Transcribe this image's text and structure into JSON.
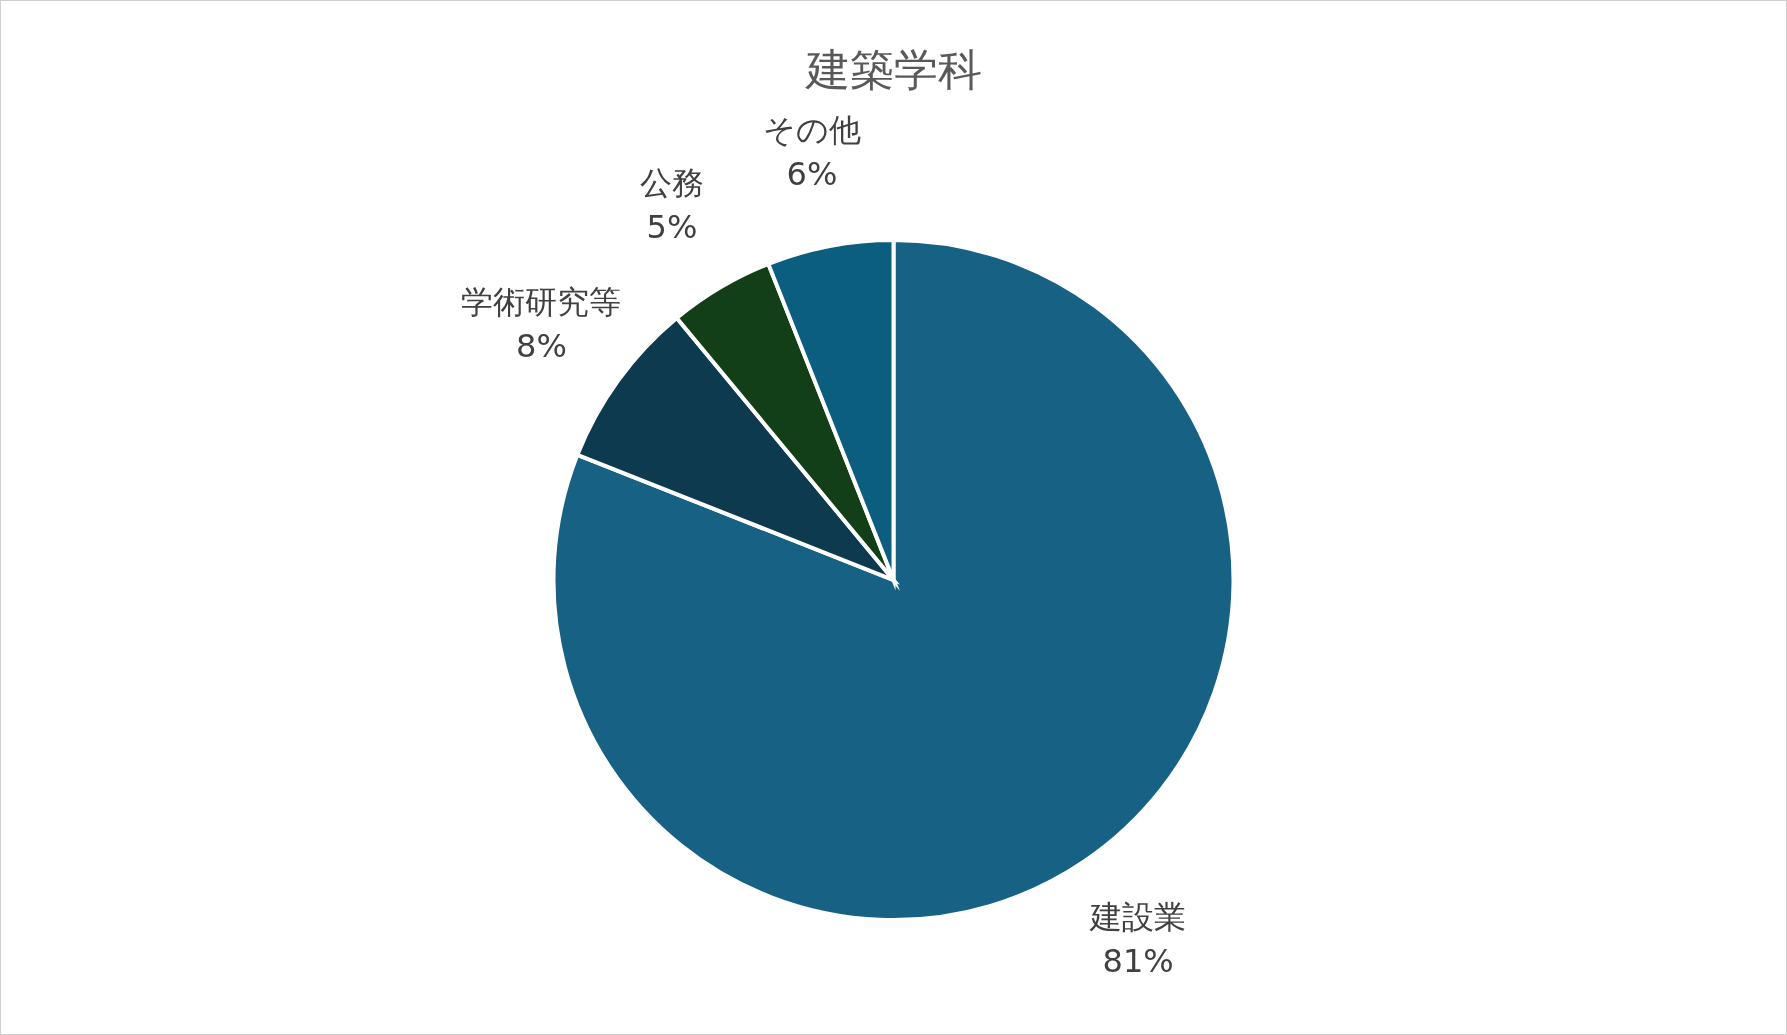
{
  "chart_data": {
    "type": "pie",
    "title": "建築学科",
    "categories": [
      "建設業",
      "学術研究等",
      "公務",
      "その他"
    ],
    "values": [
      81,
      8,
      5,
      6
    ],
    "colors": [
      "#176184",
      "#0e3a50",
      "#123f17",
      "#0b5e80"
    ],
    "value_labels": [
      "81%",
      "8%",
      "5%",
      "6%"
    ],
    "legend": false
  }
}
